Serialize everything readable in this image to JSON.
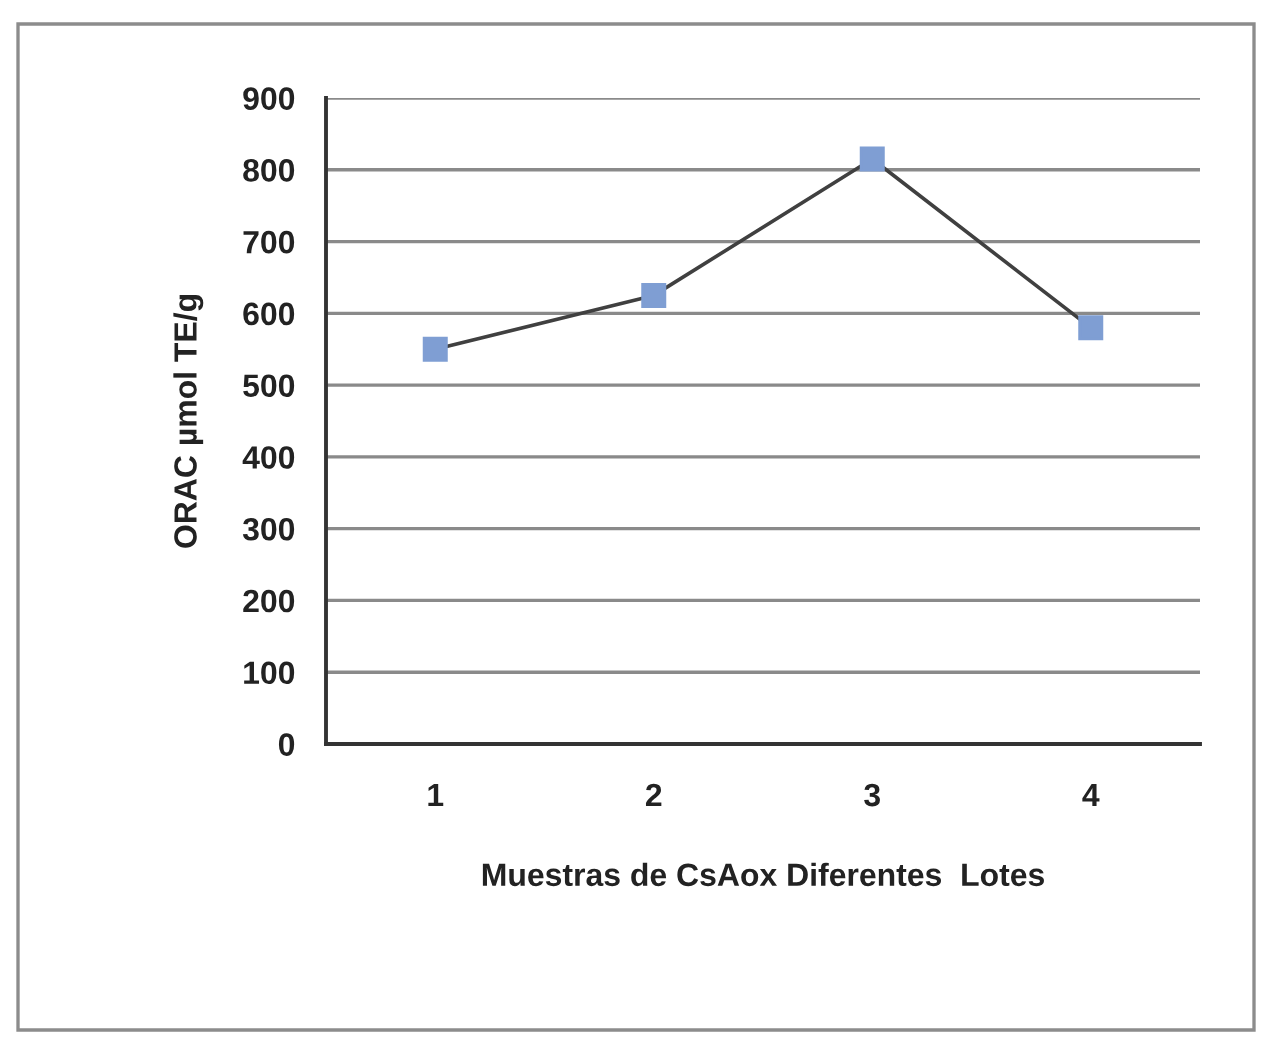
{
  "chart_data": {
    "type": "line",
    "categories": [
      "1",
      "2",
      "3",
      "4"
    ],
    "series": [
      {
        "color": "#404040",
        "colors": [
          "#7f9ed3",
          "#7f9ed3",
          "#7f9ed3",
          "#7f9ed3"
        ],
        "values": [
          550,
          625,
          815,
          580
        ]
      }
    ],
    "xlabel": "Muestras de CsAox Diferentes  Lotes",
    "ylabel": "ORAC µmol TE/g",
    "ylim": [
      0,
      900
    ],
    "yticks": [
      0,
      100,
      200,
      300,
      400,
      500,
      600,
      700,
      800,
      900
    ],
    "grid": "y",
    "marker": "square",
    "line_style": "solid",
    "legend": false
  }
}
